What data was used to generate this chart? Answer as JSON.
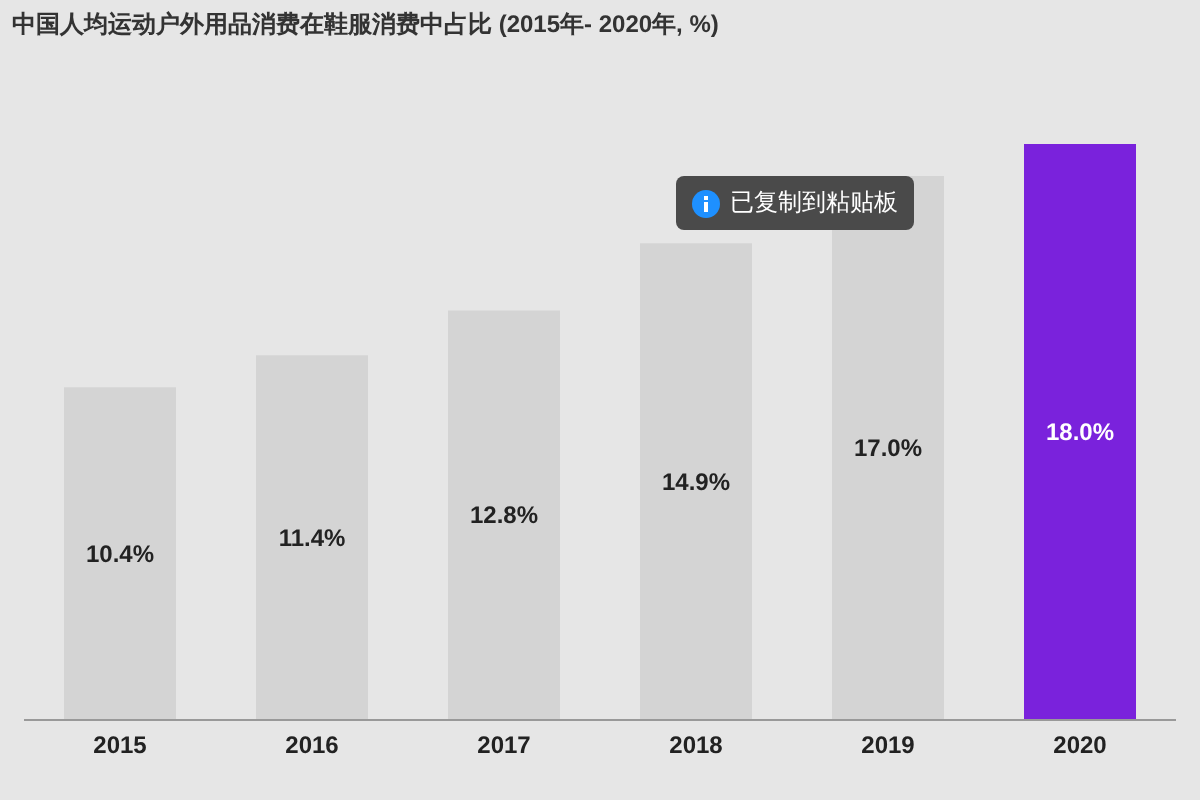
{
  "chart_data": {
    "type": "bar",
    "title": "中国人均运动户外用品消费在鞋服消费中占比 (2015年- 2020年, %)",
    "categories": [
      "2015",
      "2016",
      "2017",
      "2018",
      "2019",
      "2020"
    ],
    "values": [
      10.4,
      11.4,
      12.8,
      14.9,
      17.0,
      18.0
    ],
    "colors": [
      "#d4d4d4",
      "#d4d4d4",
      "#d4d4d4",
      "#d4d4d4",
      "#d4d4d4",
      "#7a22dc"
    ],
    "value_labels": [
      "10.4%",
      "11.4%",
      "12.8%",
      "14.9%",
      "17.0%",
      "18.0%"
    ],
    "annotations": [
      "已复制到粘贴板"
    ],
    "grid": false,
    "legend": false
  }
}
